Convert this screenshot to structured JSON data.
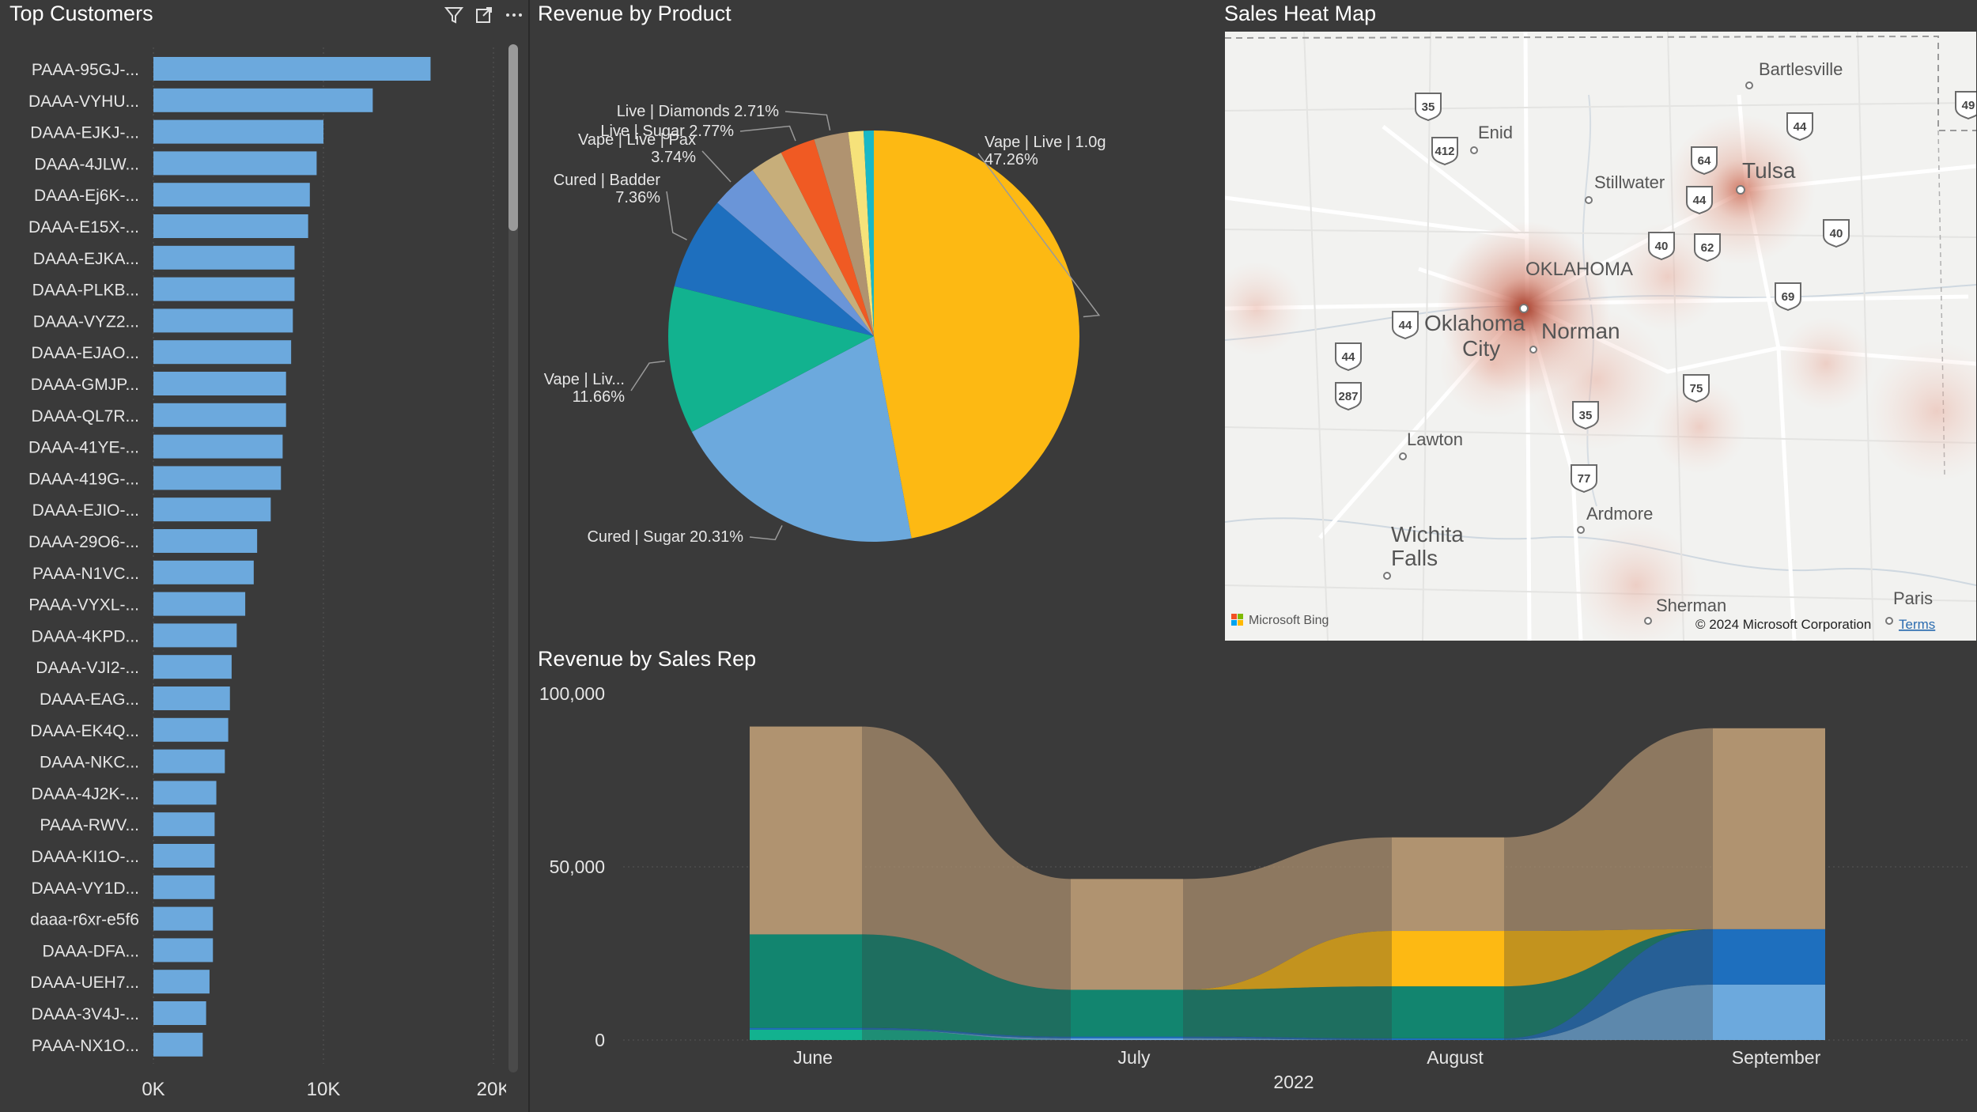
{
  "top_customers": {
    "title": "Top Customers",
    "icons": [
      "filter-icon",
      "focus-mode-icon",
      "more-options-icon"
    ],
    "chart_data": {
      "type": "bar",
      "orientation": "horizontal",
      "categories": [
        "PAAA-95GJ-...",
        "DAAA-VYHU...",
        "DAAA-EJKJ-...",
        "DAAA-4JLW...",
        "DAAA-Ej6K-...",
        "DAAA-E15X-...",
        "DAAA-EJKA...",
        "DAAA-PLKB...",
        "DAAA-VYZ2...",
        "DAAA-EJAO...",
        "DAAA-GMJP...",
        "DAAA-QL7R...",
        "DAAA-41YE-...",
        "DAAA-419G-...",
        "DAAA-EJIO-...",
        "DAAA-29O6-...",
        "PAAA-N1VC...",
        "PAAA-VYXL-...",
        "DAAA-4KPD...",
        "DAAA-VJI2-...",
        "DAAA-EAG...",
        "DAAA-EK4Q...",
        "DAAA-NKC...",
        "DAAA-4J2K-...",
        "PAAA-RWV...",
        "DAAA-KI1O-...",
        "DAAA-VY1D...",
        "daaa-r6xr-e5f6",
        "DAAA-DFA...",
        "DAAA-UEH7...",
        "DAAA-3V4J-...",
        "PAAA-NX1O..."
      ],
      "values": [
        16300,
        12900,
        10000,
        9600,
        9200,
        9100,
        8300,
        8300,
        8200,
        8100,
        7800,
        7800,
        7600,
        7500,
        6900,
        6100,
        5900,
        5400,
        4900,
        4600,
        4500,
        4400,
        4200,
        3700,
        3600,
        3600,
        3600,
        3500,
        3500,
        3300,
        3100,
        2900
      ],
      "x_ticks": [
        "0K",
        "10K",
        "20K"
      ],
      "xlim": [
        0,
        20000
      ]
    }
  },
  "revenue_by_product": {
    "title": "Revenue by Product",
    "chart_data": {
      "type": "pie",
      "slices": [
        {
          "label": "Vape | Live | 1.0g",
          "pct_label": "47.26%",
          "value": 47.26,
          "color": "#FDB913"
        },
        {
          "label": "Cured | Sugar",
          "pct_label": "20.31%",
          "value": 20.31,
          "color": "#6CA9DD"
        },
        {
          "label": "Vape | Liv...",
          "pct_label": "11.66%",
          "value": 11.66,
          "color": "#12B28F"
        },
        {
          "label": "Cured | Badder",
          "pct_label": "7.36%",
          "value": 7.36,
          "color": "#1E6FBE"
        },
        {
          "label": "Vape | Live | Pax",
          "pct_label": "3.74%",
          "value": 3.74,
          "color": "#6A95D8"
        },
        {
          "label": "",
          "pct_label": "",
          "value": 2.6,
          "color": "#C7AE7A"
        },
        {
          "label": "Live | Sugar",
          "pct_label": "2.77%",
          "value": 2.77,
          "color": "#F05A23"
        },
        {
          "label": "Live | Diamonds",
          "pct_label": "2.71%",
          "value": 2.71,
          "color": "#B09370"
        },
        {
          "label": "",
          "pct_label": "",
          "value": 1.2,
          "color": "#F6E27A"
        },
        {
          "label": "",
          "pct_label": "",
          "value": 0.8,
          "color": "#19B8C6"
        }
      ]
    }
  },
  "sales_heat_map": {
    "title": "Sales Heat Map",
    "places": [
      "Bartlesville",
      "Enid",
      "Tulsa",
      "Stillwater",
      "OKLAHOMA",
      "Oklahoma",
      "City",
      "Norman",
      "Lawton",
      "Ardmore",
      "Wichita",
      "Falls",
      "Sherman",
      "Paris"
    ],
    "shields": [
      "35",
      "412",
      "44",
      "64",
      "44",
      "40",
      "62",
      "40",
      "69",
      "44",
      "287",
      "35",
      "75",
      "77",
      "44",
      "49"
    ],
    "attribution": "Microsoft Bing",
    "copyright": "© 2024 Microsoft Corporation",
    "terms": "Terms"
  },
  "revenue_by_sales_rep": {
    "title": "Revenue by Sales Rep",
    "chart_data": {
      "type": "ribbon",
      "categories": [
        "June",
        "July",
        "August",
        "September"
      ],
      "x_axis_title": "2022",
      "y_ticks": [
        "100,000",
        "50,000",
        "0"
      ],
      "ylim": [
        0,
        100000
      ],
      "series": [
        {
          "color": "#B09370",
          "values": [
            60000,
            32000,
            27000,
            58000
          ]
        },
        {
          "color": "#12856F",
          "values": [
            27000,
            13500,
            15000,
            0
          ]
        },
        {
          "color": "#FDB913",
          "values": [
            0,
            0,
            16000,
            0
          ]
        },
        {
          "color": "#1E6FBE",
          "values": [
            500,
            500,
            500,
            16000
          ]
        },
        {
          "color": "#6CA9DD",
          "values": [
            0,
            500,
            0,
            16000
          ]
        },
        {
          "color": "#12B28F",
          "values": [
            3000,
            0,
            0,
            0
          ]
        }
      ]
    }
  }
}
